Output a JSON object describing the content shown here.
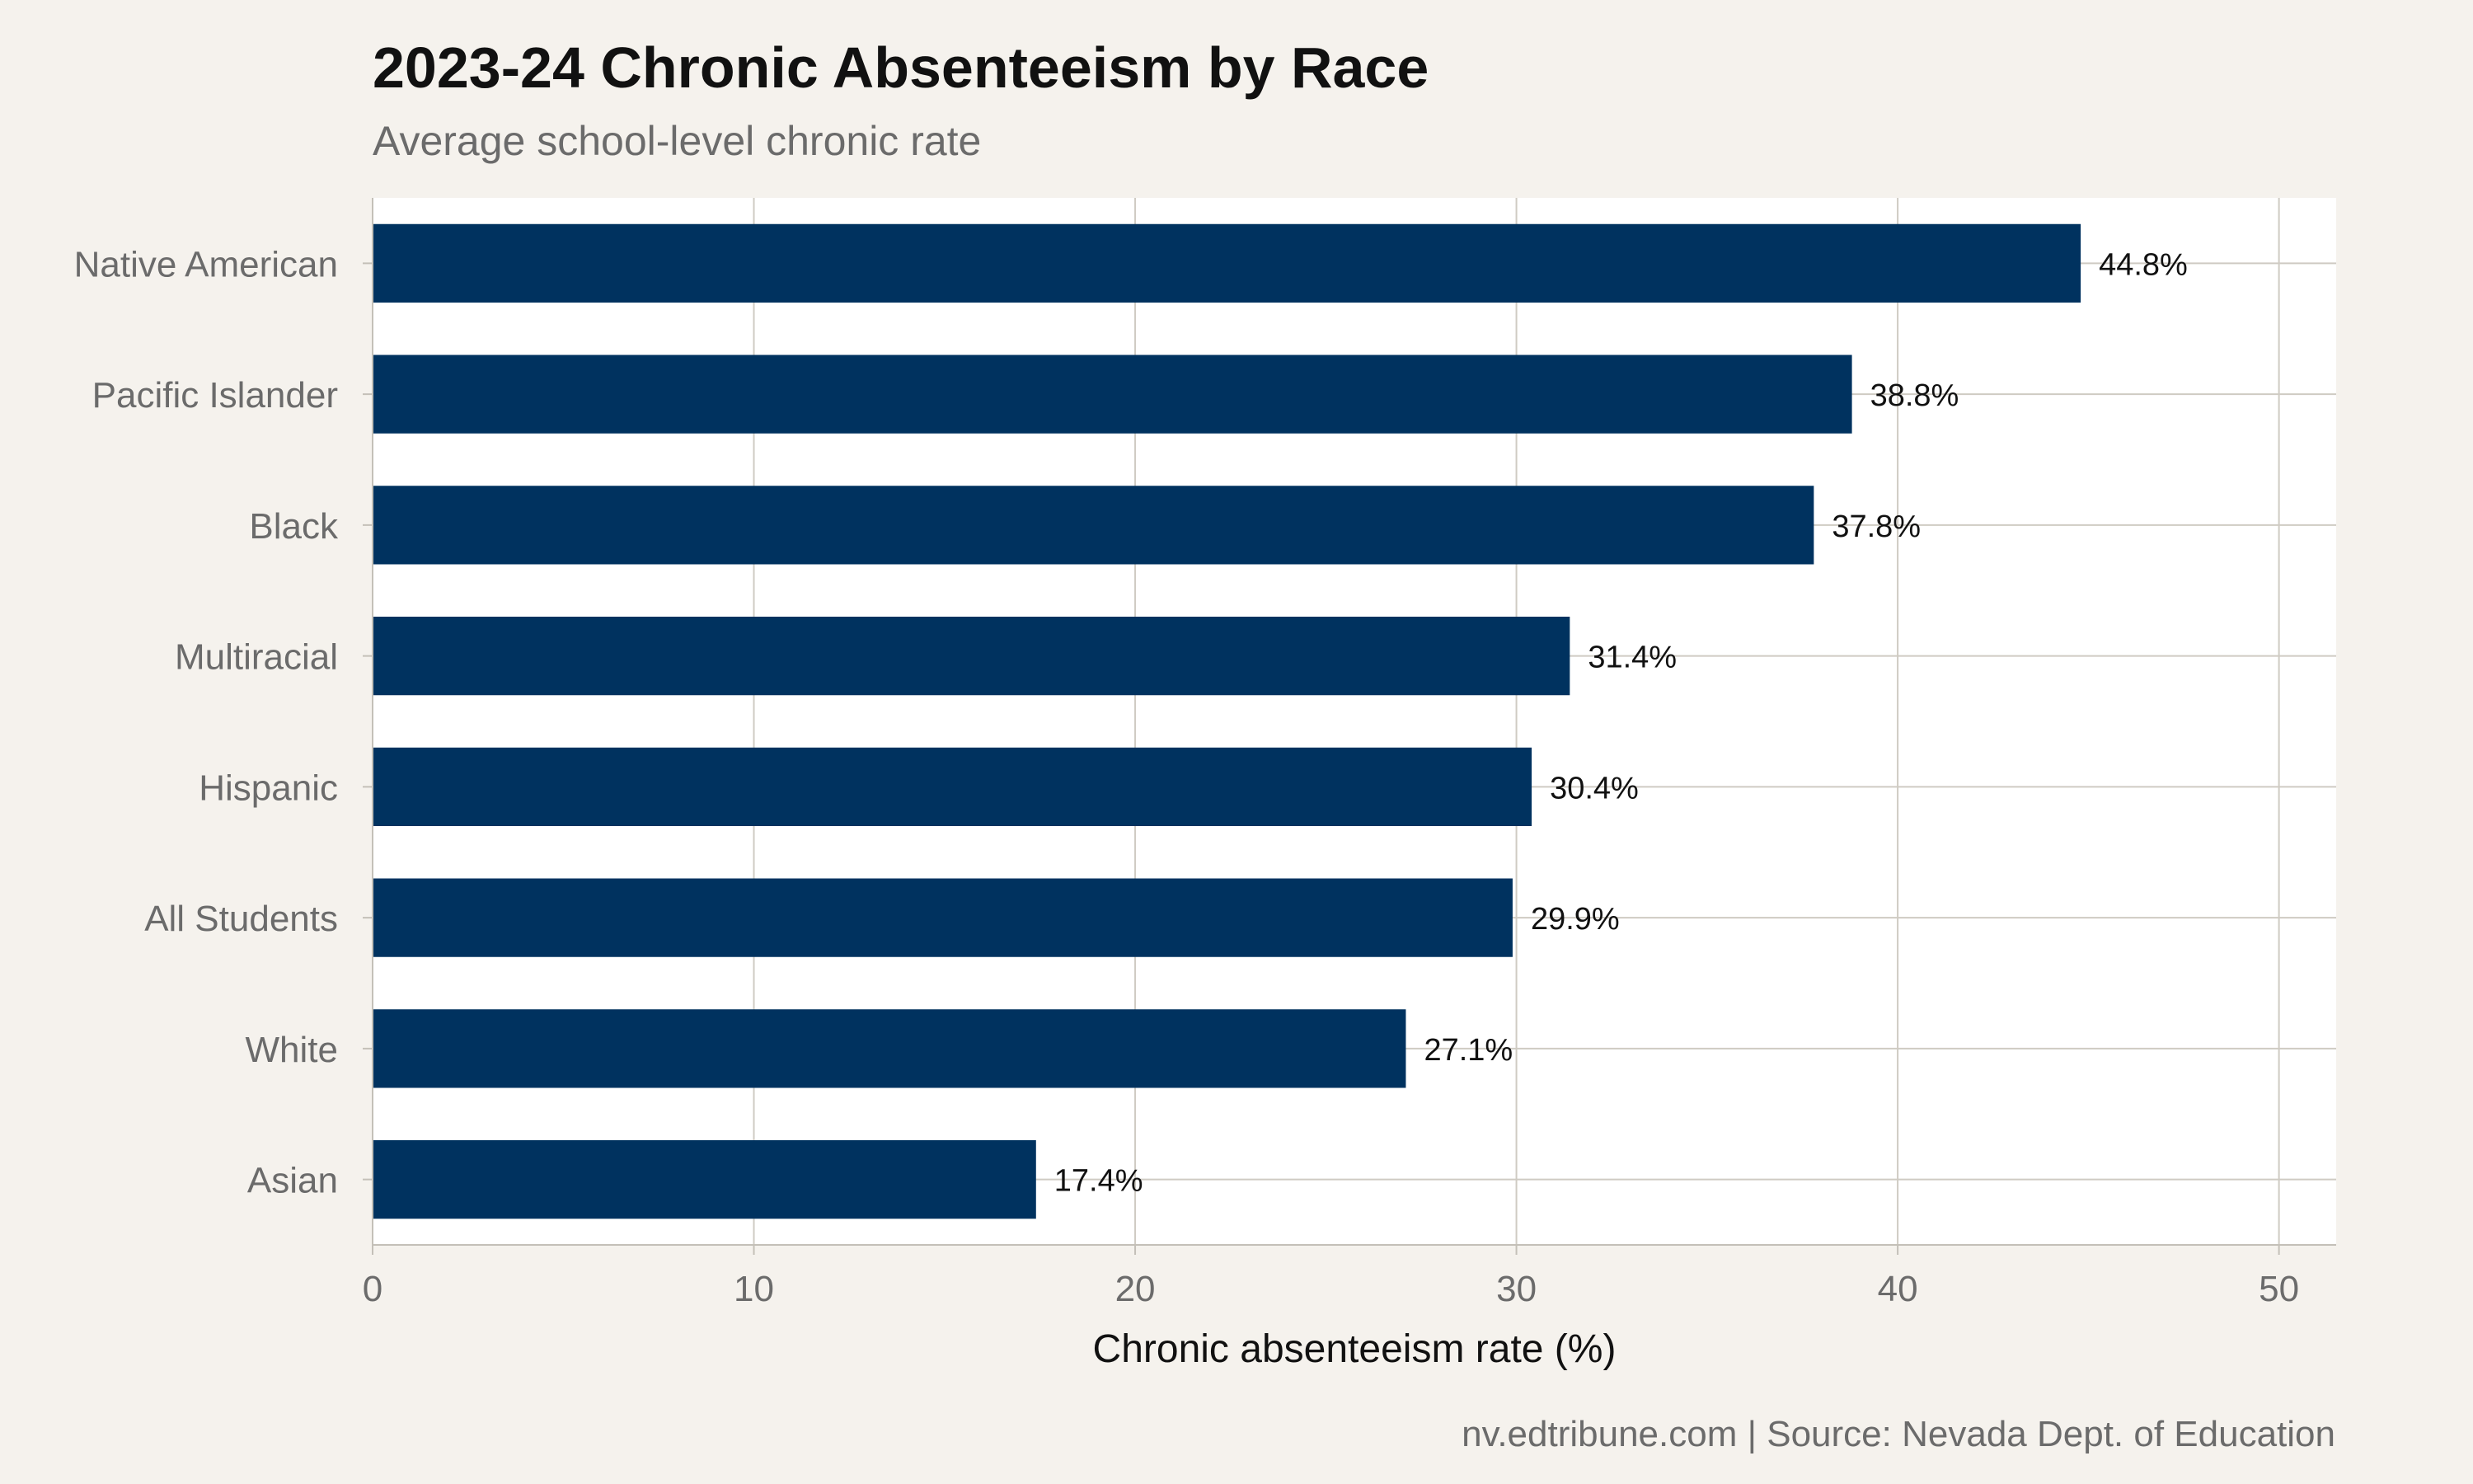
{
  "chart_data": {
    "type": "bar",
    "orientation": "horizontal",
    "title": "2023-24 Chronic Absenteeism by Race",
    "subtitle": "Average school-level chronic rate",
    "xlabel": "Chronic absenteeism rate (%)",
    "ylabel": "",
    "xlim": [
      0,
      51.5
    ],
    "xticks": [
      0,
      10,
      20,
      30,
      40,
      50
    ],
    "categories": [
      "Native American",
      "Pacific Islander",
      "Black",
      "Multiracial",
      "Hispanic",
      "All Students",
      "White",
      "Asian"
    ],
    "values": [
      44.8,
      38.8,
      37.8,
      31.4,
      30.4,
      29.9,
      27.1,
      17.4
    ],
    "data_labels": [
      "44.8%",
      "38.8%",
      "37.8%",
      "31.4%",
      "30.4%",
      "29.9%",
      "27.1%",
      "17.4%"
    ],
    "bar_color": "#00325f",
    "grid": true,
    "legend": "none",
    "caption": "nv.edtribune.com | Source: Nevada Dept. of Education"
  }
}
